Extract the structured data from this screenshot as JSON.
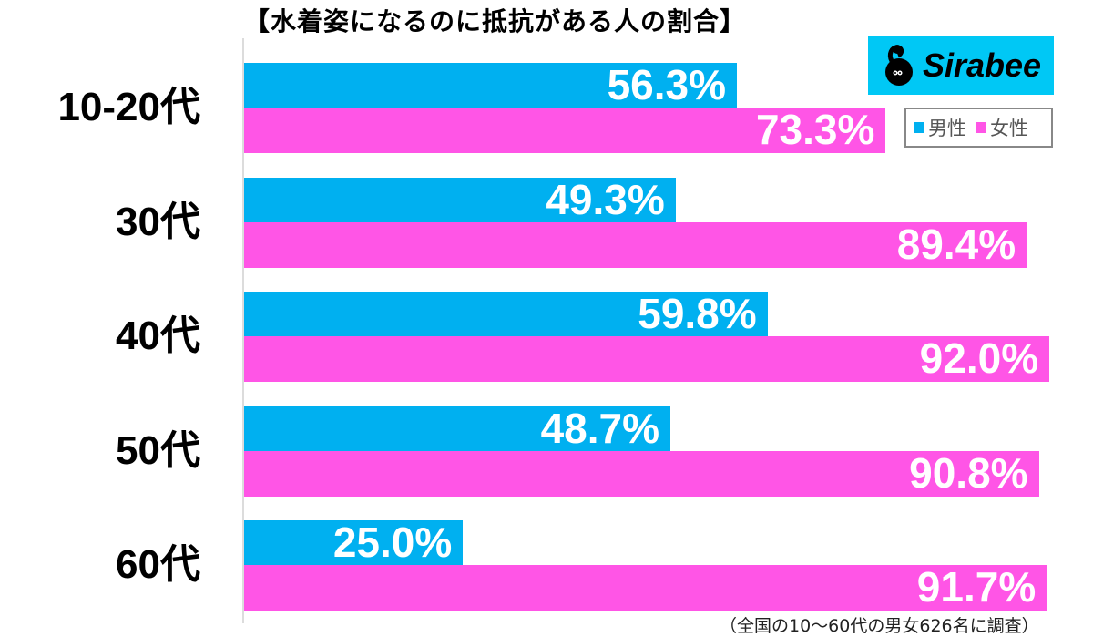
{
  "chart_data": {
    "type": "bar",
    "orientation": "horizontal",
    "title": "【水着姿になるのに抵抗がある人の割合】",
    "categories": [
      "10-20代",
      "30代",
      "40代",
      "50代",
      "60代"
    ],
    "series": [
      {
        "name": "男性",
        "color": "#00b0f0",
        "values": [
          56.3,
          49.3,
          59.8,
          48.7,
          25.0
        ],
        "labels": [
          "56.3%",
          "49.3%",
          "59.8%",
          "48.7%",
          "25.0%"
        ]
      },
      {
        "name": "女性",
        "color": "#ff55e6",
        "values": [
          73.3,
          89.4,
          92.0,
          90.8,
          91.7
        ],
        "labels": [
          "73.3%",
          "89.4%",
          "92.0%",
          "90.8%",
          "91.7%"
        ]
      }
    ],
    "xlabel": "",
    "ylabel": "",
    "xlim": [
      0,
      100
    ],
    "grid": false,
    "legend_position": "top-right",
    "note": "（全国の10〜60代の男女626名に調査）"
  },
  "brand": {
    "name": "Sirabee",
    "bg_color": "#00c8f5"
  },
  "legend": {
    "male": "男性",
    "female": "女性"
  }
}
